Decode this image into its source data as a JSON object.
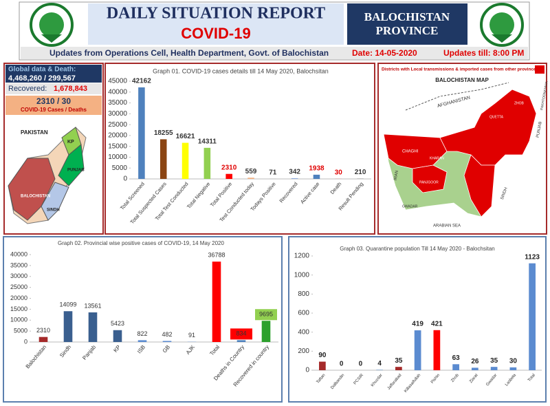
{
  "header": {
    "title": "DAILY SITUATION REPORT",
    "subtitle": "COVID-19",
    "province_line1": "BALOCHISTAN",
    "province_line2": "PROVINCE",
    "updates": "Updates from Operations Cell, Health Department, Govt. of Balochistan",
    "date": "Date: 14-05-2020",
    "time": "Updates till: 8:00 PM"
  },
  "global_panel": {
    "heading": "Global data & Death:",
    "global_numbers": "4,468,260 / 299,567",
    "recovered_label": "Recovered:",
    "recovered_value": "1,678,843",
    "province_numbers": "2310 / 30",
    "province_caption": "COVID-19 Cases / Deaths",
    "map_labels": [
      "PAKISTAN",
      "KP",
      "PUNJAB",
      "BALOCHISTAN",
      "SINDH"
    ]
  },
  "map_panel": {
    "heading": "Districts with Local transmissions & imported cases from other provinces",
    "map_title": "BALOCHISTAN MAP",
    "labels": [
      "AFGHANISTAN",
      "IRAN",
      "ARABIAN SEA",
      "SINDH",
      "PUNJAB",
      "PAKHTOONKHWA",
      "CHAGHI",
      "KHARAN",
      "PANJGOOR",
      "ZHOB",
      "QUETTA",
      "GWADAR"
    ]
  },
  "chart_data": [
    {
      "type": "bar",
      "title": "Graph 01. COVID-19 cases details till 14 May 2020, Balochsitan",
      "categories": [
        "Total Screened",
        "Total Suspected Cases",
        "Total Test Conducted",
        "Total Negative",
        "Total Positive",
        "Test Conducted today",
        "Todays Positive",
        "Recovered",
        "Active case",
        "Death",
        "Result Pending"
      ],
      "values": [
        42162,
        18255,
        16621,
        14311,
        2310,
        559,
        71,
        342,
        1938,
        30,
        210
      ],
      "colors": [
        "#4f81bd",
        "#8b4513",
        "#ffff00",
        "#92d050",
        "#ff0000",
        "#f4b183",
        "#a5a5a5",
        "#8eaadb",
        "#4f81bd",
        "#ff0000",
        "#a5a5a5"
      ],
      "label_colors": [
        "#333333",
        "#333333",
        "#333333",
        "#333333",
        "#e00000",
        "#333333",
        "#333333",
        "#333333",
        "#e00000",
        "#e00000",
        "#333333"
      ],
      "ylim": [
        0,
        45000
      ],
      "yticks": [
        0,
        5000,
        10000,
        15000,
        20000,
        25000,
        30000,
        35000,
        40000,
        45000
      ],
      "grid": false
    },
    {
      "type": "bar",
      "title": "Graph 02. Provincial wise positive cases of COVID-19, 14 May  2020",
      "categories": [
        "Balochistan",
        "Sindh",
        "Panjab",
        "KP",
        "ISB",
        "GB",
        "AJK",
        "Total",
        "Deaths in Country",
        "Recovered in country"
      ],
      "values": [
        2310,
        14099,
        13561,
        5423,
        822,
        482,
        91,
        36788,
        834,
        9695
      ],
      "colors": [
        "#a52a2a",
        "#3a5f8f",
        "#3a5f8f",
        "#3a5f8f",
        "#5b8bd0",
        "#5b8bd0",
        "#5b8bd0",
        "#ff0000",
        "#4f81bd",
        "#2ca02c"
      ],
      "label_colors": [
        "#333333",
        "#333333",
        "#333333",
        "#333333",
        "#333333",
        "#333333",
        "#333333",
        "#333333",
        "#333333",
        "#333333"
      ],
      "label_boxes": [
        null,
        null,
        null,
        null,
        null,
        null,
        null,
        null,
        "#ff0000",
        "#92d050"
      ],
      "ylim": [
        0,
        40000
      ],
      "yticks": [
        0,
        5000,
        10000,
        15000,
        20000,
        25000,
        30000,
        35000,
        40000
      ],
      "grid": false
    },
    {
      "type": "bar",
      "title": "Graph 03. Quarantine population Till 14 May 2020 - Balochsitan",
      "categories": [
        "Taftan",
        "Dalbandin",
        "PCSIR",
        "Khuzdar",
        "Jaffarabad",
        "Killasaifullah",
        "Pishin",
        "Zhob",
        "Ziarat",
        "Gwadar",
        "Lasbela",
        "Total"
      ],
      "values": [
        90,
        0,
        0,
        4,
        35,
        419,
        421,
        63,
        26,
        35,
        30,
        1123
      ],
      "colors": [
        "#a52a2a",
        "#4f81bd",
        "#4f81bd",
        "#4f81bd",
        "#a52a2a",
        "#5b8bd0",
        "#ff0000",
        "#5b8bd0",
        "#5b8bd0",
        "#5b8bd0",
        "#5b8bd0",
        "#5b8bd0"
      ],
      "label_colors": [
        "#222222",
        "#222222",
        "#222222",
        "#222222",
        "#222222",
        "#222222",
        "#222222",
        "#222222",
        "#222222",
        "#222222",
        "#222222",
        "#222222"
      ],
      "ylim": [
        0,
        1200
      ],
      "yticks": [
        0,
        200,
        400,
        600,
        800,
        1000,
        1200
      ],
      "grid": false
    }
  ]
}
